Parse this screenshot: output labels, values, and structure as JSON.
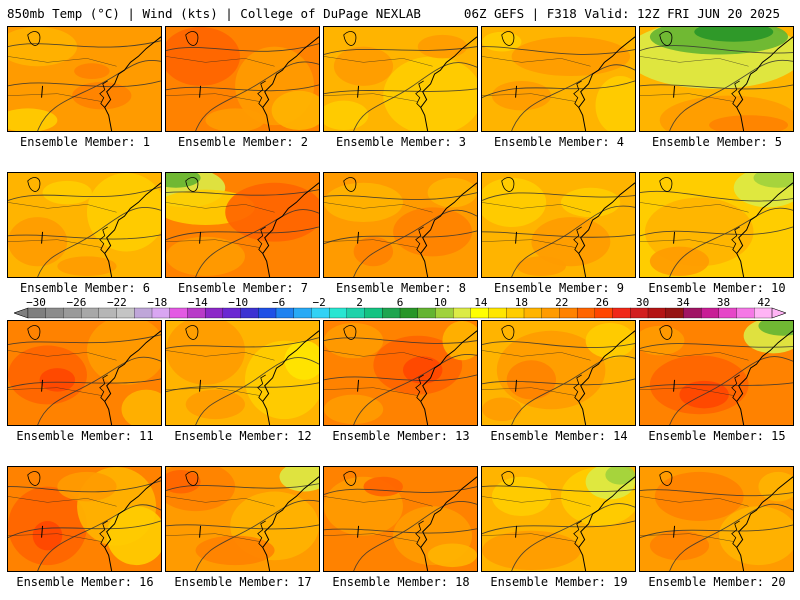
{
  "header": {
    "left": "850mb Temp (°C) | Wind (kts) | College of DuPage NEXLAB",
    "right": "06Z GEFS | F318 Valid: 12Z FRI JUN 20 2025"
  },
  "colorbar": {
    "labels": [
      "−30",
      "−26",
      "−22",
      "−18",
      "−14",
      "−10",
      "−6",
      "−2",
      "2",
      "6",
      "10",
      "14",
      "18",
      "22",
      "26",
      "30",
      "34",
      "38",
      "42"
    ],
    "colors": [
      "#7f7f7f",
      "#8c8c8c",
      "#9a9a9a",
      "#a8a8a8",
      "#b6b6b6",
      "#c4c4c4",
      "#bfa6d9",
      "#d9a6f2",
      "#e35ae3",
      "#b83ac8",
      "#8c28c8",
      "#6a28d2",
      "#3c32d2",
      "#1e50e6",
      "#1e82f0",
      "#28aaf5",
      "#32d2f5",
      "#28e6d2",
      "#1ed2aa",
      "#14c382",
      "#1ea550",
      "#289628",
      "#64b432",
      "#a0d23c",
      "#dceb46",
      "#ffff00",
      "#ffe600",
      "#ffcd00",
      "#ffb400",
      "#ff9b00",
      "#ff8200",
      "#ff6400",
      "#ff4600",
      "#f02818",
      "#d21e1e",
      "#b41414",
      "#961414",
      "#a01464",
      "#c81e96",
      "#e646c8",
      "#f578e6",
      "#ffb4f5"
    ]
  },
  "panels": [
    {
      "caption": "Ensemble Member: 1"
    },
    {
      "caption": "Ensemble Member: 2"
    },
    {
      "caption": "Ensemble Member: 3"
    },
    {
      "caption": "Ensemble Member: 4"
    },
    {
      "caption": "Ensemble Member: 5"
    },
    {
      "caption": "Ensemble Member: 6"
    },
    {
      "caption": "Ensemble Member: 7"
    },
    {
      "caption": "Ensemble Member: 8"
    },
    {
      "caption": "Ensemble Member: 9"
    },
    {
      "caption": "Ensemble Member: 10"
    },
    {
      "caption": "Ensemble Member: 11"
    },
    {
      "caption": "Ensemble Member: 12"
    },
    {
      "caption": "Ensemble Member: 13"
    },
    {
      "caption": "Ensemble Member: 14"
    },
    {
      "caption": "Ensemble Member: 15"
    },
    {
      "caption": "Ensemble Member: 16"
    },
    {
      "caption": "Ensemble Member: 17"
    },
    {
      "caption": "Ensemble Member: 18"
    },
    {
      "caption": "Ensemble Member: 19"
    },
    {
      "caption": "Ensemble Member: 20"
    }
  ]
}
